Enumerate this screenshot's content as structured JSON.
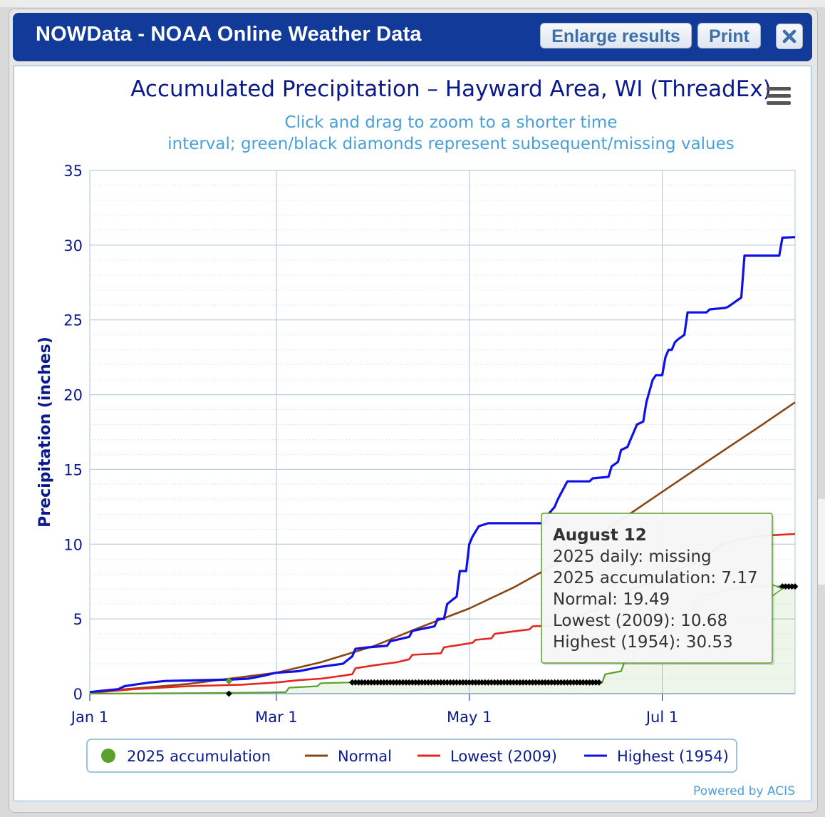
{
  "dialog": {
    "title": "NOWData - NOAA Online Weather Data",
    "enlarge_label": "Enlarge results",
    "print_label": "Print"
  },
  "credit": "Powered by ACIS",
  "colors": {
    "title": "#0a1a8c",
    "subtitle": "#4a9fd6",
    "axis": "#0a1a8c",
    "accum": "#5aa02c",
    "normal": "#8b4513",
    "lowest": "#e0281e",
    "highest": "#1010e6",
    "missing": "#000000"
  },
  "chart_data": {
    "type": "line",
    "title": "Accumulated Precipitation – Hayward Area, WI (ThreadEx)",
    "subtitle": "Click and drag to zoom to a shorter time interval; green/black diamonds represent subsequent/missing values",
    "ylabel": "Precipitation (inches)",
    "ylim": [
      0,
      35
    ],
    "xlim": [
      "2025-01-01",
      "2025-08-12"
    ],
    "y_ticks": [
      0,
      5,
      10,
      15,
      20,
      25,
      30,
      35
    ],
    "x_ticks": [
      {
        "date": "2025-01-01",
        "label": "Jan 1"
      },
      {
        "date": "2025-03-01",
        "label": "Mar 1"
      },
      {
        "date": "2025-05-01",
        "label": "May 1"
      },
      {
        "date": "2025-07-01",
        "label": "Jul 1"
      }
    ],
    "grid": true,
    "legend_position": "bottom",
    "series": [
      {
        "name": "Highest (1954)",
        "key": "highest",
        "x": [
          "2025-01-01",
          "2025-01-05",
          "2025-01-10",
          "2025-01-12",
          "2025-01-15",
          "2025-01-20",
          "2025-01-25",
          "2025-02-05",
          "2025-02-15",
          "2025-02-20",
          "2025-02-25",
          "2025-03-01",
          "2025-03-08",
          "2025-03-15",
          "2025-03-22",
          "2025-03-25",
          "2025-03-26",
          "2025-03-30",
          "2025-04-05",
          "2025-04-06",
          "2025-04-12",
          "2025-04-13",
          "2025-04-20",
          "2025-04-21",
          "2025-04-23",
          "2025-04-24",
          "2025-04-27",
          "2025-04-28",
          "2025-04-30",
          "2025-05-01",
          "2025-05-02",
          "2025-05-04",
          "2025-05-07",
          "2025-05-25",
          "2025-05-26",
          "2025-05-28",
          "2025-05-29",
          "2025-05-31",
          "2025-06-01",
          "2025-06-08",
          "2025-06-09",
          "2025-06-14",
          "2025-06-15",
          "2025-06-17",
          "2025-06-18",
          "2025-06-20",
          "2025-06-21",
          "2025-06-22",
          "2025-06-23",
          "2025-06-25",
          "2025-06-26",
          "2025-06-28",
          "2025-06-29",
          "2025-07-01",
          "2025-07-02",
          "2025-07-03",
          "2025-07-04",
          "2025-07-05",
          "2025-07-06",
          "2025-07-08",
          "2025-07-09",
          "2025-07-15",
          "2025-07-16",
          "2025-07-21",
          "2025-07-22",
          "2025-07-26",
          "2025-07-27",
          "2025-07-29",
          "2025-07-30",
          "2025-08-07",
          "2025-08-08",
          "2025-08-12"
        ],
        "y": [
          0.1,
          0.2,
          0.3,
          0.5,
          0.6,
          0.75,
          0.85,
          0.9,
          0.95,
          1.0,
          1.2,
          1.4,
          1.5,
          1.8,
          2.0,
          2.5,
          3.0,
          3.1,
          3.2,
          3.5,
          3.8,
          4.2,
          4.5,
          5.0,
          5.0,
          6.0,
          6.5,
          8.2,
          8.2,
          10.0,
          10.5,
          11.2,
          11.4,
          11.4,
          12.0,
          12.5,
          13.0,
          13.8,
          14.2,
          14.2,
          14.4,
          14.5,
          15.2,
          15.5,
          16.3,
          16.5,
          17.0,
          17.5,
          18.0,
          18.2,
          19.5,
          21.0,
          21.3,
          21.3,
          22.5,
          23.0,
          23.0,
          23.5,
          23.7,
          24.0,
          25.5,
          25.5,
          25.7,
          25.8,
          25.9,
          26.5,
          29.3,
          29.3,
          29.3,
          29.3,
          30.5,
          30.53
        ]
      },
      {
        "name": "Lowest (2009)",
        "key": "lowest",
        "x": [
          "2025-01-01",
          "2025-01-15",
          "2025-02-01",
          "2025-02-18",
          "2025-03-01",
          "2025-03-08",
          "2025-03-15",
          "2025-03-22",
          "2025-03-25",
          "2025-03-26",
          "2025-04-01",
          "2025-04-08",
          "2025-04-12",
          "2025-04-13",
          "2025-04-22",
          "2025-04-23",
          "2025-05-02",
          "2025-05-03",
          "2025-05-08",
          "2025-05-09",
          "2025-05-20",
          "2025-05-21",
          "2025-06-01",
          "2025-06-02",
          "2025-06-10",
          "2025-06-11",
          "2025-06-20",
          "2025-06-21",
          "2025-06-30",
          "2025-07-01",
          "2025-07-10",
          "2025-07-15",
          "2025-07-20",
          "2025-07-25",
          "2025-07-30",
          "2025-08-05",
          "2025-08-12"
        ],
        "y": [
          0.05,
          0.3,
          0.5,
          0.6,
          0.75,
          0.9,
          1.0,
          1.2,
          1.3,
          1.7,
          1.9,
          2.1,
          2.3,
          2.6,
          2.7,
          3.1,
          3.4,
          3.6,
          3.7,
          4.0,
          4.3,
          4.5,
          4.6,
          5.0,
          5.6,
          6.0,
          6.4,
          7.0,
          7.5,
          8.0,
          8.6,
          9.2,
          10.0,
          10.3,
          10.5,
          10.6,
          10.68
        ]
      },
      {
        "name": "Normal",
        "key": "normal",
        "x": [
          "2025-01-01",
          "2025-02-01",
          "2025-03-01",
          "2025-03-15",
          "2025-04-01",
          "2025-04-15",
          "2025-05-01",
          "2025-05-15",
          "2025-06-01",
          "2025-06-15",
          "2025-07-01",
          "2025-07-15",
          "2025-08-01",
          "2025-08-12"
        ],
        "y": [
          0.1,
          0.65,
          1.4,
          2.1,
          3.2,
          4.4,
          5.7,
          7.1,
          9.1,
          11.2,
          13.5,
          15.5,
          17.9,
          19.49
        ]
      },
      {
        "name": "2025 accumulation",
        "key": "accum",
        "x": [
          "2025-01-01",
          "2025-02-14",
          "2025-03-04",
          "2025-03-05",
          "2025-03-14",
          "2025-03-15",
          "2025-03-24",
          "2025-06-12",
          "2025-06-13",
          "2025-06-18",
          "2025-06-19",
          "2025-06-22",
          "2025-06-23",
          "2025-07-06",
          "2025-07-07",
          "2025-07-09",
          "2025-07-10",
          "2025-07-12",
          "2025-07-13",
          "2025-07-20",
          "2025-07-21",
          "2025-07-31",
          "2025-08-08"
        ],
        "y": [
          0.0,
          0.05,
          0.1,
          0.4,
          0.5,
          0.7,
          0.75,
          0.75,
          1.3,
          1.5,
          2.1,
          2.3,
          3.5,
          4.5,
          5.0,
          5.2,
          5.5,
          6.2,
          6.5,
          6.8,
          7.0,
          7.17,
          7.17
        ]
      }
    ],
    "missing_points": {
      "ranges": [
        [
          "2025-03-25",
          "2025-06-11"
        ],
        [
          "2025-08-08",
          "2025-08-12"
        ]
      ],
      "single": {
        "x": "2025-02-14",
        "y": 0.0
      },
      "value": 0.75,
      "tail_value": 7.17
    },
    "subsequent_point": {
      "x": "2025-02-14",
      "y": 0.85
    },
    "tooltip": {
      "date": "August 12",
      "lines": [
        "2025 daily: missing",
        "2025 accumulation: 7.17",
        "Normal: 19.49",
        "Lowest (2009): 10.68",
        "Highest (1954): 30.53"
      ]
    },
    "legend": [
      {
        "label": "2025 accumulation",
        "marker": "circle",
        "key": "accum"
      },
      {
        "label": "Normal",
        "marker": "line",
        "key": "normal"
      },
      {
        "label": "Lowest (2009)",
        "marker": "line",
        "key": "lowest"
      },
      {
        "label": "Highest (1954)",
        "marker": "line",
        "key": "highest"
      }
    ]
  }
}
